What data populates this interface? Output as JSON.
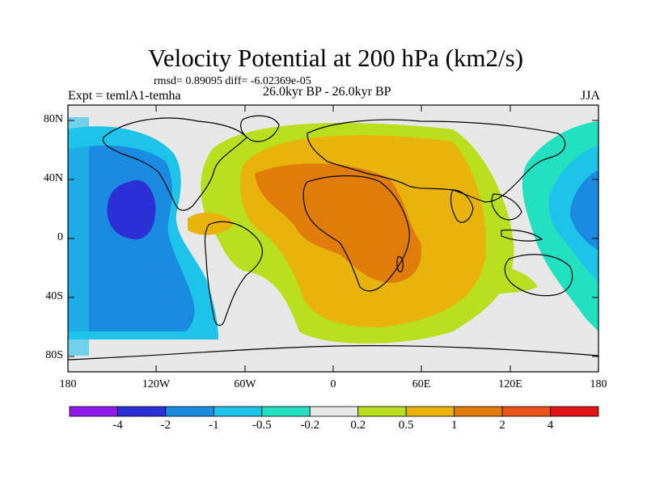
{
  "title": "Velocity Potential at 200 hPa (km2/s)",
  "stats": "rmsd= 0.89095 diff= -6.02369e-05",
  "experiment": "Expt = temlA1-temha",
  "period": "26.0kyr BP - 26.0kyr BP",
  "season": "JJA",
  "lat_labels": [
    "80N",
    "40N",
    "0",
    "40S",
    "80S"
  ],
  "lon_labels": [
    "180",
    "120W",
    "60W",
    "0",
    "60E",
    "120E",
    "180"
  ],
  "colorbar": {
    "labels": [
      "-4",
      "-2",
      "-1",
      "-0.5",
      "-0.2",
      "0.2",
      "0.5",
      "1",
      "2",
      "4"
    ],
    "colors": [
      "#9019e8",
      "#2a30d6",
      "#1a8be0",
      "#1ec3ea",
      "#22e0c0",
      "#e8e8e8",
      "#b8e01e",
      "#e8b40c",
      "#e07c0a",
      "#e8541a",
      "#e01414"
    ]
  }
}
